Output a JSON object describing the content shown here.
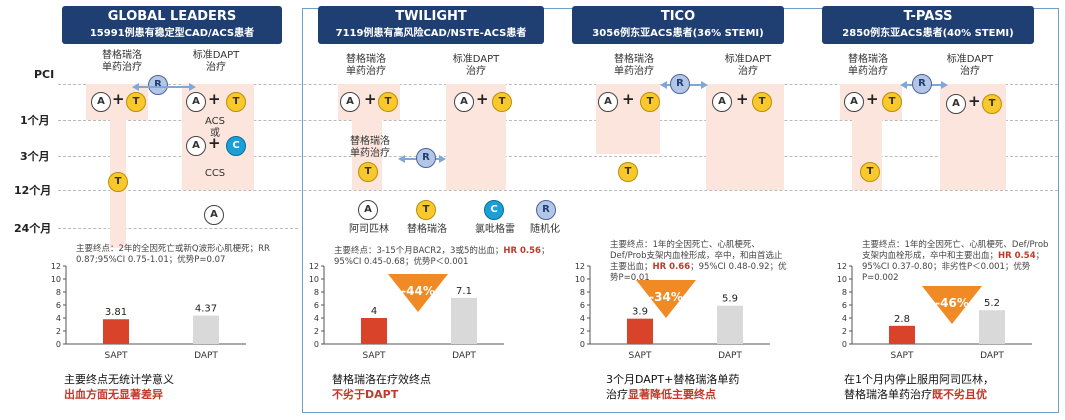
{
  "row_labels": [
    "PCI",
    "1个月",
    "3个月",
    "12个月",
    "24个月"
  ],
  "headers": [
    {
      "title": "GLOBAL LEADERS",
      "sub_plain": "15991例患有",
      "sub_bold": "稳定型CAD/ACS",
      "sub_tail": "患者"
    },
    {
      "title": "TWILIGHT",
      "sub_plain": "7119例患有高风险CAD/NSTE-ACS患者",
      "sub_bold": "",
      "sub_tail": ""
    },
    {
      "title": "TICO",
      "sub_plain": "3056例",
      "sub_bold": "东亚ACS",
      "sub_tail": "患者(36% STEMI)"
    },
    {
      "title": "T-PASS",
      "sub_plain": "2850例",
      "sub_bold": "东亚ACS",
      "sub_tail": "患者(40% STEMI)"
    }
  ],
  "arm_labels": {
    "gl_left": "替格瑞洛\n单药治疗",
    "gl_right": "标准DAPT\n治疗",
    "tw_left": "替格瑞洛\n单药治疗",
    "tw_right": "标准DAPT\n治疗",
    "tw_mid": "替格瑞洛\n单药治疗",
    "tico_left": "替格瑞洛\n单药治疗",
    "tico_right": "标准DAPT\n治疗",
    "tp_left": "替格瑞洛\n单药治疗",
    "tp_right": "标准DAPT\n治疗",
    "acs": "ACS",
    "or": "或",
    "ccs": "CCS"
  },
  "legend": [
    {
      "symbol": "A",
      "label": "阿司匹林",
      "kind": "a"
    },
    {
      "symbol": "T",
      "label": "替格瑞洛",
      "kind": "t"
    },
    {
      "symbol": "C",
      "label": "氯吡格雷",
      "kind": "c"
    },
    {
      "symbol": "R",
      "label": "随机化",
      "kind": "r"
    }
  ],
  "notes": [
    {
      "pre": "主要终点：2年的全因死亡或新Q波形心肌梗死；RR 0.87;95%CI 0.75-1.01；优势P=0.07",
      "hr": "",
      "post": ""
    },
    {
      "pre": "主要终点：3-15个月BACR2，3或5的出血；",
      "hr": "HR 0.56",
      "post": "；95%CI 0.45-0.68；优势P＜0.001"
    },
    {
      "pre": "主要终点：1年的全因死亡、心肌梗死、Def/Prob支架内血栓形成，卒中，和由首选止主要出血；",
      "hr": "HR 0.66",
      "post": "；95%CI 0.48-0.92；优势P=0.01"
    },
    {
      "pre": "主要终点：1年的全因死亡、心肌梗死、Def/Prob 支架内血栓形成，卒中和主要出血；",
      "hr": "HR 0.54",
      "post": "；95%CI 0.37-0.80；非劣性P＜0.001；优势P=0.002"
    }
  ],
  "reductions": [
    "-44%",
    "-34%",
    "-46%"
  ],
  "conclusions": [
    {
      "line1": "主要终点无统计学意义",
      "line2_plain": "",
      "line2_red": "出血方面无显著差异"
    },
    {
      "line1": "替格瑞洛在疗效终点",
      "line2_plain": "",
      "line2_red": "不劣于DAPT"
    },
    {
      "line1": "3个月DAPT+替格瑞洛单药",
      "line2_plain": "治疗",
      "line2_red": "显著降低主要终点"
    },
    {
      "line1": "在1个月内停止服用阿司匹林，",
      "line2_plain": "替格瑞洛单药治疗",
      "line2_red": "既不劣且优"
    }
  ],
  "colors": {
    "sapt": "#d9432a",
    "dapt": "#d9d9d9",
    "header": "#1f3f73"
  },
  "chart_data": [
    {
      "type": "bar",
      "categories": [
        "SAPT",
        "DAPT"
      ],
      "values": [
        3.81,
        4.37
      ],
      "ylim": [
        0,
        12
      ],
      "yticks": [
        0,
        2,
        4,
        6,
        8,
        10,
        12
      ]
    },
    {
      "type": "bar",
      "categories": [
        "SAPT",
        "DAPT"
      ],
      "values": [
        4,
        7.1
      ],
      "ylim": [
        0,
        12
      ],
      "yticks": [
        0,
        2,
        4,
        6,
        8,
        10,
        12
      ]
    },
    {
      "type": "bar",
      "categories": [
        "SAPT",
        "DAPT"
      ],
      "values": [
        3.9,
        5.9
      ],
      "ylim": [
        0,
        12
      ],
      "yticks": [
        0,
        2,
        4,
        6,
        8,
        10,
        12
      ]
    },
    {
      "type": "bar",
      "categories": [
        "SAPT",
        "DAPT"
      ],
      "values": [
        2.8,
        5.2
      ],
      "ylim": [
        0,
        12
      ],
      "yticks": [
        0,
        2,
        4,
        6,
        8,
        10,
        12
      ]
    }
  ]
}
